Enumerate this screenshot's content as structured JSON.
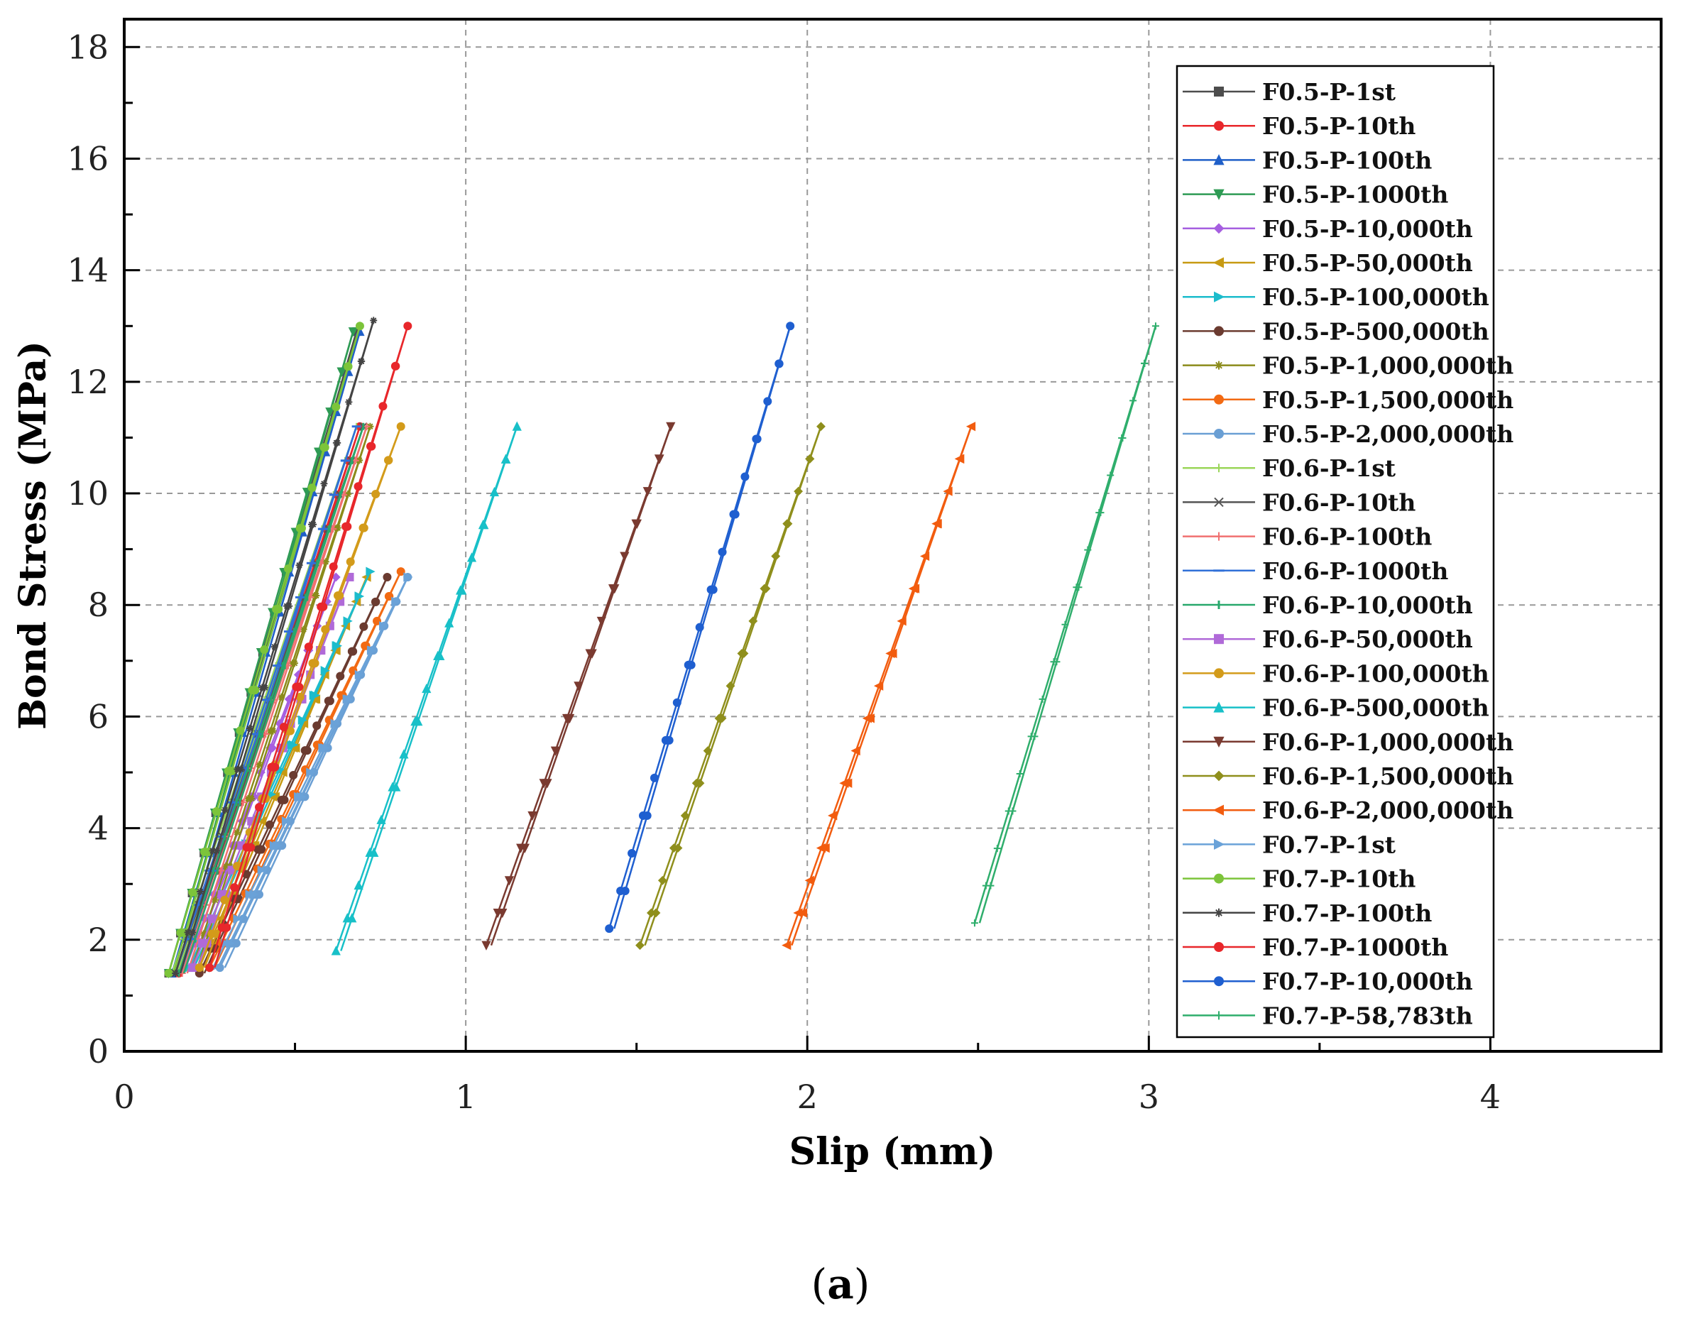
{
  "panel_label": {
    "open": "(",
    "letter": "a",
    "close": ")"
  },
  "chart_data": {
    "type": "line",
    "title": "",
    "xlabel": "Slip (mm)",
    "ylabel": "Bond Stress (MPa)",
    "xlim": [
      0,
      4.5
    ],
    "ylim": [
      0,
      18.5
    ],
    "xticks": [
      0,
      1,
      2,
      3,
      4
    ],
    "yticks": [
      0,
      2,
      4,
      6,
      8,
      10,
      12,
      14,
      16,
      18
    ],
    "grid": true,
    "legend_position": "top-right",
    "series": [
      {
        "name": "F0.5-P-1st",
        "color": "#4d4d4d",
        "marker": "square",
        "x": [
          0.13,
          0.68
        ],
        "y": [
          1.4,
          12.9
        ]
      },
      {
        "name": "F0.5-P-10th",
        "color": "#e8272b",
        "marker": "circle",
        "x": [
          0.16,
          0.69
        ],
        "y": [
          1.4,
          11.2
        ]
      },
      {
        "name": "F0.5-P-100th",
        "color": "#1f5fc8",
        "marker": "triangle-up",
        "x": [
          0.14,
          0.69
        ],
        "y": [
          1.4,
          12.9
        ]
      },
      {
        "name": "F0.5-P-1000th",
        "color": "#2e9b54",
        "marker": "triangle-down",
        "x": [
          0.13,
          0.67
        ],
        "y": [
          1.4,
          12.9
        ]
      },
      {
        "name": "F0.5-P-10,000th",
        "color": "#a65fe0",
        "marker": "diamond",
        "x": [
          0.18,
          0.62
        ],
        "y": [
          1.5,
          8.5
        ]
      },
      {
        "name": "F0.5-P-50,000th",
        "color": "#c79a12",
        "marker": "triangle-left",
        "x": [
          0.22,
          0.71
        ],
        "y": [
          1.5,
          8.5
        ]
      },
      {
        "name": "F0.5-P-100,000th",
        "color": "#1cbccc",
        "marker": "triangle-right",
        "x": [
          0.19,
          0.72
        ],
        "y": [
          1.5,
          8.6
        ]
      },
      {
        "name": "F0.5-P-500,000th",
        "color": "#6b3b30",
        "marker": "circle",
        "x": [
          0.22,
          0.77
        ],
        "y": [
          1.4,
          8.5
        ]
      },
      {
        "name": "F0.5-P-1,000,000th",
        "color": "#8b8b1a",
        "marker": "star",
        "x": [
          0.2,
          0.72
        ],
        "y": [
          1.5,
          11.2
        ]
      },
      {
        "name": "F0.5-P-1,500,000th",
        "color": "#f26a13",
        "marker": "circle",
        "x": [
          0.25,
          0.81
        ],
        "y": [
          1.5,
          8.6
        ]
      },
      {
        "name": "F0.5-P-2,000,000th",
        "color": "#6a9fd4",
        "marker": "circle",
        "x": [
          0.28,
          0.83
        ],
        "y": [
          1.5,
          8.5
        ]
      },
      {
        "name": "F0.6-P-1st",
        "color": "#9bd65a",
        "marker": "plus",
        "x": [
          0.14,
          0.68
        ],
        "y": [
          1.4,
          11.2
        ]
      },
      {
        "name": "F0.6-P-10th",
        "color": "#555555",
        "marker": "x",
        "x": [
          0.15,
          0.7
        ],
        "y": [
          1.4,
          11.2
        ]
      },
      {
        "name": "F0.6-P-100th",
        "color": "#f07070",
        "marker": "plus",
        "x": [
          0.17,
          0.71
        ],
        "y": [
          1.4,
          11.2
        ]
      },
      {
        "name": "F0.6-P-1000th",
        "color": "#3070d8",
        "marker": "dash",
        "x": [
          0.15,
          0.68
        ],
        "y": [
          1.4,
          11.2
        ]
      },
      {
        "name": "F0.6-P-10,000th",
        "color": "#28a86c",
        "marker": "pipe",
        "x": [
          0.16,
          0.7
        ],
        "y": [
          1.4,
          11.2
        ]
      },
      {
        "name": "F0.6-P-50,000th",
        "color": "#b06ad8",
        "marker": "square",
        "x": [
          0.2,
          0.66
        ],
        "y": [
          1.5,
          8.5
        ]
      },
      {
        "name": "F0.6-P-100,000th",
        "color": "#d39b1a",
        "marker": "circle",
        "x": [
          0.22,
          0.81
        ],
        "y": [
          1.5,
          11.2
        ]
      },
      {
        "name": "F0.6-P-500,000th",
        "color": "#18c0c8",
        "marker": "triangle-up",
        "x": [
          0.62,
          1.15
        ],
        "y": [
          1.8,
          11.2
        ]
      },
      {
        "name": "F0.6-P-1,000,000th",
        "color": "#7a3a30",
        "marker": "triangle-down",
        "x": [
          1.06,
          1.6
        ],
        "y": [
          1.9,
          11.2
        ]
      },
      {
        "name": "F0.6-P-1,500,000th",
        "color": "#8f8f1c",
        "marker": "diamond",
        "x": [
          1.51,
          2.04
        ],
        "y": [
          1.9,
          11.2
        ]
      },
      {
        "name": "F0.6-P-2,000,000th",
        "color": "#f25c0f",
        "marker": "triangle-left",
        "x": [
          1.94,
          2.48
        ],
        "y": [
          1.9,
          11.2
        ]
      },
      {
        "name": "F0.7-P-1st",
        "color": "#6aa2d8",
        "marker": "triangle-right",
        "x": [
          0.26,
          0.83
        ],
        "y": [
          1.5,
          8.5
        ]
      },
      {
        "name": "F0.7-P-10th",
        "color": "#7cc43a",
        "marker": "circle",
        "x": [
          0.13,
          0.69
        ],
        "y": [
          1.4,
          13.0
        ]
      },
      {
        "name": "F0.7-P-100th",
        "color": "#444444",
        "marker": "star",
        "x": [
          0.15,
          0.73
        ],
        "y": [
          1.4,
          13.1
        ]
      },
      {
        "name": "F0.7-P-1000th",
        "color": "#e8272b",
        "marker": "circle",
        "x": [
          0.25,
          0.83
        ],
        "y": [
          1.5,
          13.0
        ]
      },
      {
        "name": "F0.7-P-10,000th",
        "color": "#1f5fd0",
        "marker": "circle",
        "x": [
          1.42,
          1.95
        ],
        "y": [
          2.2,
          13.0
        ]
      },
      {
        "name": "F0.7-P-58,783th",
        "color": "#2fae6c",
        "marker": "plus",
        "x": [
          2.49,
          3.02
        ],
        "y": [
          2.3,
          13.0
        ]
      }
    ]
  }
}
